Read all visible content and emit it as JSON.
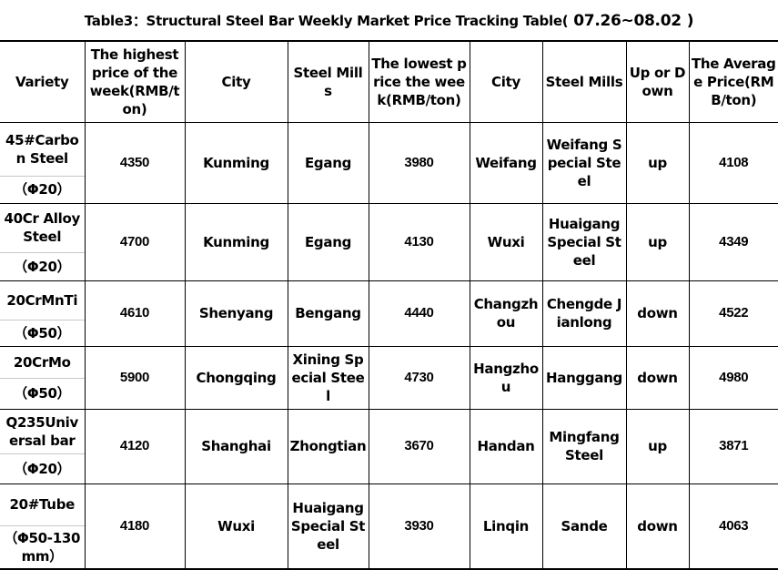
{
  "title": "Table3：Structural Steel Bar Weekly Market Price Tracking Table(",
  "title_dates": "07.26~08.02",
  "title_close": ")",
  "headers": [
    "Variety",
    "The highest price of the week(RMB/ton)",
    "City",
    "Steel Mills",
    "The lowest price the week(RMB/ton)",
    "City",
    "Steel Mills",
    "Up or Down",
    "The Average Price(RMB/ton)"
  ],
  "rows": [
    {
      "variety": "45#Carbon Steel",
      "spec": "（Φ20）",
      "high": "4350",
      "high_city": "Kunming",
      "high_mill": "Egang",
      "low": "3980",
      "low_city": "Weifang",
      "low_mill": "Weifang Special Steel",
      "trend": "up",
      "avg": "4108"
    },
    {
      "variety": "40Cr Alloy Steel",
      "spec": "（Φ20）",
      "high": "4700",
      "high_city": "Kunming",
      "high_mill": "Egang",
      "low": "4130",
      "low_city": "Wuxi",
      "low_mill": "Huaigang Special Steel",
      "trend": "up",
      "avg": "4349"
    },
    {
      "variety": "20CrMnTi",
      "spec": "（Φ50）",
      "high": "4610",
      "high_city": "Shenyang",
      "high_mill": "Bengang",
      "low": "4440",
      "low_city": "Changzhou",
      "low_mill": "Chengde Jianlong",
      "trend": "down",
      "avg": "4522"
    },
    {
      "variety": "20CrMo",
      "spec": "（Φ50）",
      "high": "5900",
      "high_city": "Chongqing",
      "high_mill": "Xining Special Steel",
      "low": "4730",
      "low_city": "Hangzhou",
      "low_mill": "Hanggang",
      "trend": "down",
      "avg": "4980"
    },
    {
      "variety": "Q235Universal bar",
      "spec": "（Φ20）",
      "high": "4120",
      "high_city": "Shanghai",
      "high_mill": "Zhongtian",
      "low": "3670",
      "low_city": "Handan",
      "low_mill": "Mingfang Steel",
      "trend": "up",
      "avg": "3871"
    },
    {
      "variety": "20#Tube",
      "spec": "（Φ50-130mm）",
      "high": "4180",
      "high_city": "Wuxi",
      "high_mill": "Huaigang Special Steel",
      "low": "3930",
      "low_city": "Linqin",
      "low_mill": "Sande",
      "trend": "down",
      "avg": "4063"
    }
  ]
}
